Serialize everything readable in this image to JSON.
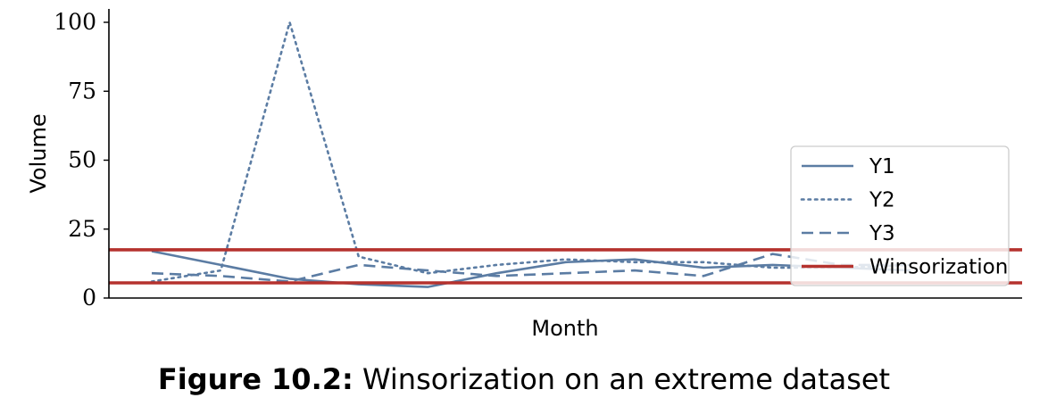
{
  "figure": {
    "label": "Figure 10.2:",
    "text": "Winsorization on an extreme dataset"
  },
  "chart_data": {
    "type": "line",
    "xlabel": "Month",
    "ylabel": "Volume",
    "x": [
      1,
      2,
      3,
      4,
      5,
      6,
      7,
      8,
      9,
      10,
      11,
      12
    ],
    "ylim": [
      0,
      105
    ],
    "yticks": [
      0,
      25,
      50,
      75,
      100
    ],
    "grid": false,
    "legend_position": "right",
    "series": [
      {
        "name": "Y1",
        "style": "solid",
        "color": "#5b7ca3",
        "values": [
          17,
          12,
          7,
          5,
          4,
          9,
          13,
          14,
          11,
          12,
          11,
          10
        ]
      },
      {
        "name": "Y2",
        "style": "dotted",
        "color": "#5b7ca3",
        "values": [
          6,
          10,
          100,
          15,
          9,
          12,
          14,
          13,
          13,
          11,
          11,
          12
        ]
      },
      {
        "name": "Y3",
        "style": "dashed",
        "color": "#5b7ca3",
        "values": [
          9,
          8,
          6,
          12,
          10,
          8,
          9,
          10,
          8,
          16,
          12,
          12
        ]
      }
    ],
    "hlines": [
      {
        "name": "Winsorization",
        "values": [
          17.5,
          5.5
        ],
        "color": "#b5322e"
      }
    ]
  }
}
